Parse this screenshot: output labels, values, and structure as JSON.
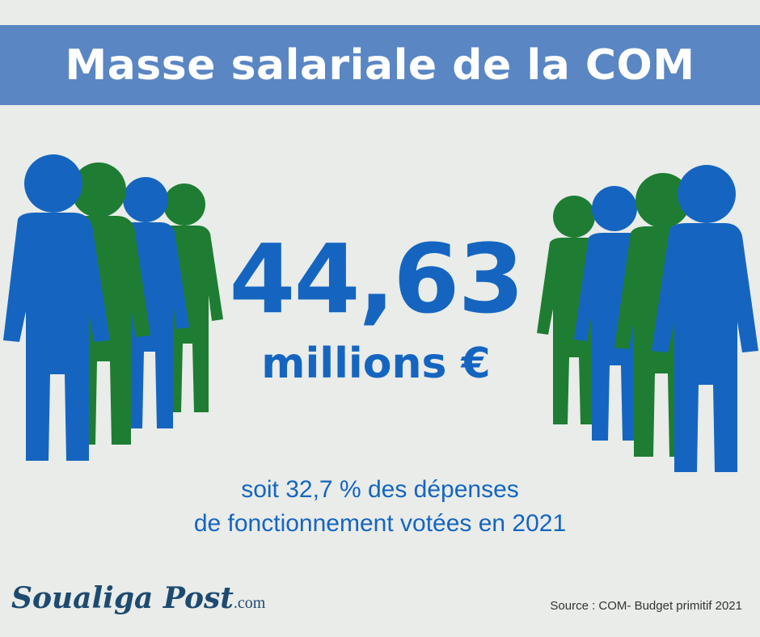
{
  "header": {
    "title": "Masse salariale de la COM"
  },
  "figure": {
    "value": "44,63",
    "unit": "millions €",
    "line1": "soit 32,7 % des dépenses",
    "line2": "de fonctionnement votées en 2021"
  },
  "footer": {
    "logo_main": "Soualiga Post",
    "logo_suffix": ".com",
    "source": "Source : COM- Budget primitif 2021"
  },
  "colors": {
    "banner": "#5a86c4",
    "blue": "#1565c0",
    "green": "#1e7d32",
    "background": "#e9ece9"
  },
  "icons": [
    "person-icon"
  ]
}
